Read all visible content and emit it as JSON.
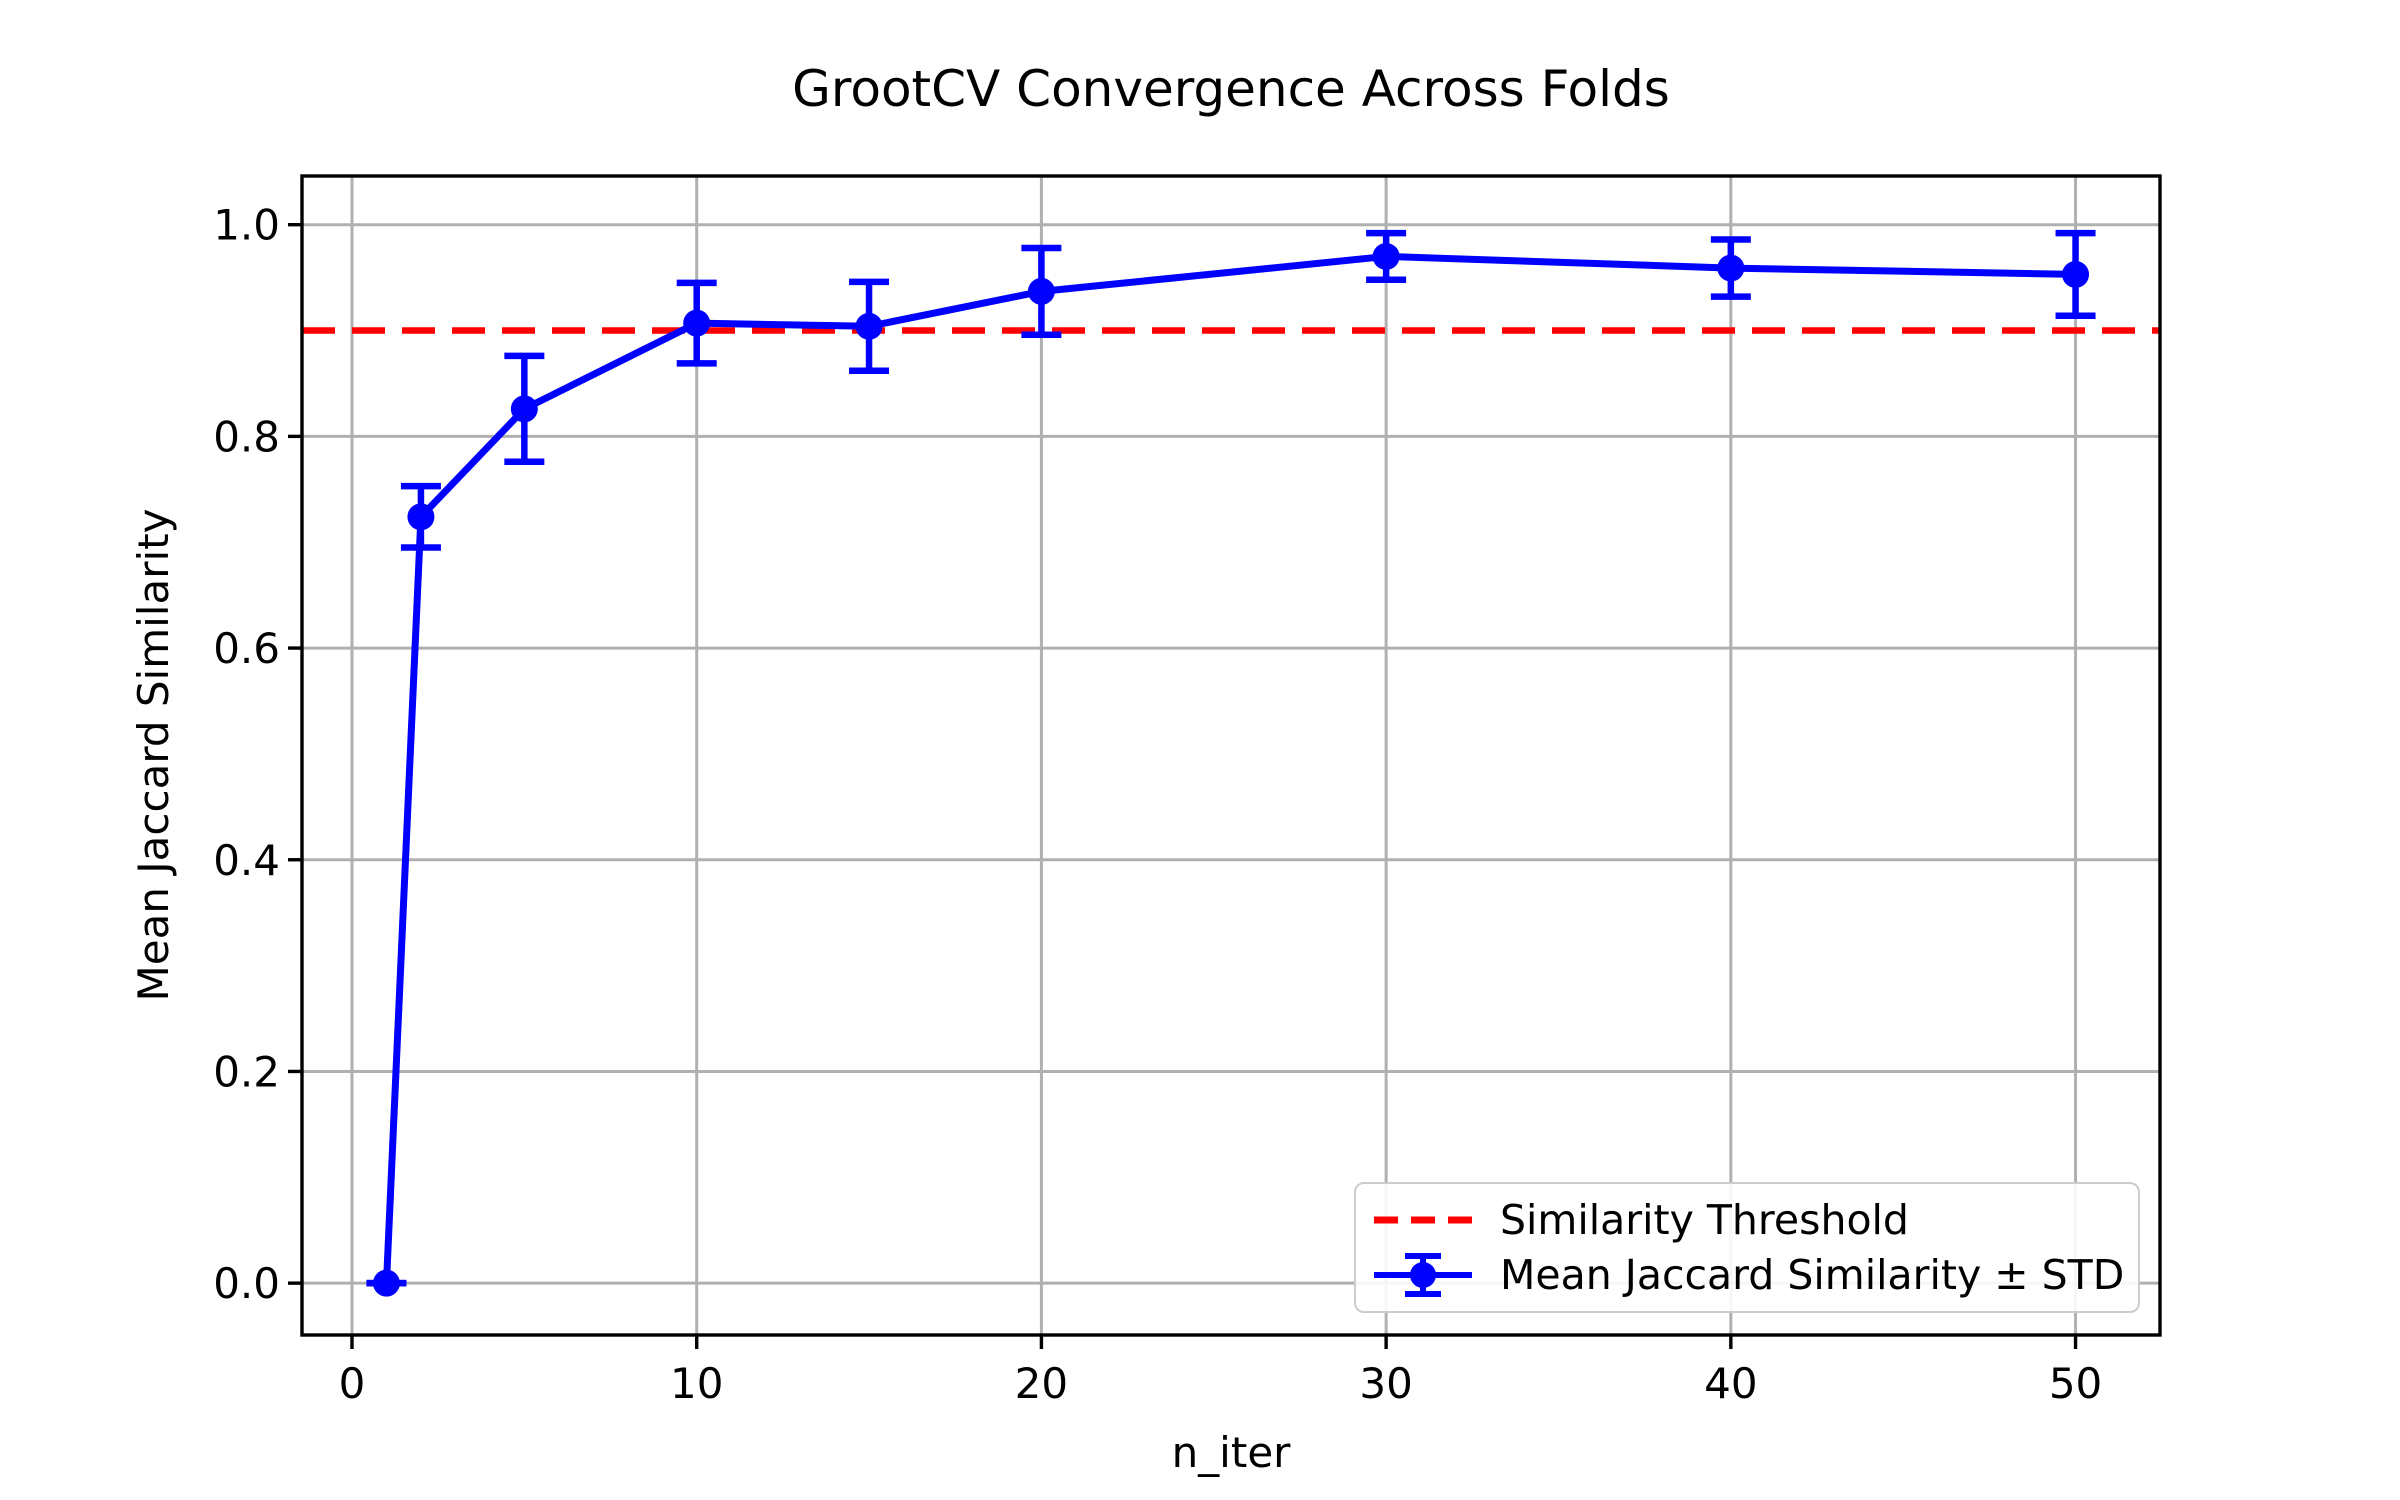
{
  "figure": {
    "title": "GrootCV Convergence Across Folds",
    "xlabel": "n_iter",
    "ylabel": "Mean Jaccard Similarity"
  },
  "legend": {
    "position": "lower right",
    "items": [
      {
        "label": "Similarity Threshold",
        "color": "#ff0000",
        "style": "dashed-line"
      },
      {
        "label": "Mean Jaccard Similarity ± STD",
        "color": "#0000ff",
        "style": "errorbar-marker"
      }
    ]
  },
  "chart_data": {
    "type": "line",
    "title": "GrootCV Convergence Across Folds",
    "xlabel": "n_iter",
    "ylabel": "Mean Jaccard Similarity",
    "x": [
      1,
      2,
      5,
      10,
      15,
      20,
      30,
      40,
      50
    ],
    "series": [
      {
        "name": "Mean Jaccard Similarity ± STD",
        "values": [
          0.0,
          0.724,
          0.826,
          0.907,
          0.904,
          0.937,
          0.97,
          0.959,
          0.953
        ],
        "std": [
          0.0,
          0.029,
          0.05,
          0.038,
          0.042,
          0.041,
          0.022,
          0.027,
          0.039
        ],
        "color": "#0000ff",
        "marker": "circle"
      }
    ],
    "threshold": {
      "label": "Similarity Threshold",
      "value": 0.9,
      "color": "#ff0000",
      "style": "dashed"
    },
    "xticks": [
      0,
      10,
      20,
      30,
      40,
      50
    ],
    "xtick_labels": [
      "0",
      "10",
      "20",
      "30",
      "40",
      "50"
    ],
    "yticks": [
      0.0,
      0.2,
      0.4,
      0.6,
      0.8,
      1.0
    ],
    "ytick_labels": [
      "0.0",
      "0.2",
      "0.4",
      "0.6",
      "0.8",
      "1.0"
    ],
    "xlim": [
      -1.45,
      52.45
    ],
    "ylim": [
      -0.049,
      1.046
    ],
    "grid": true,
    "grid_color": "#b0b0b0",
    "axis_color": "#000000",
    "legend_position": "lower right"
  }
}
